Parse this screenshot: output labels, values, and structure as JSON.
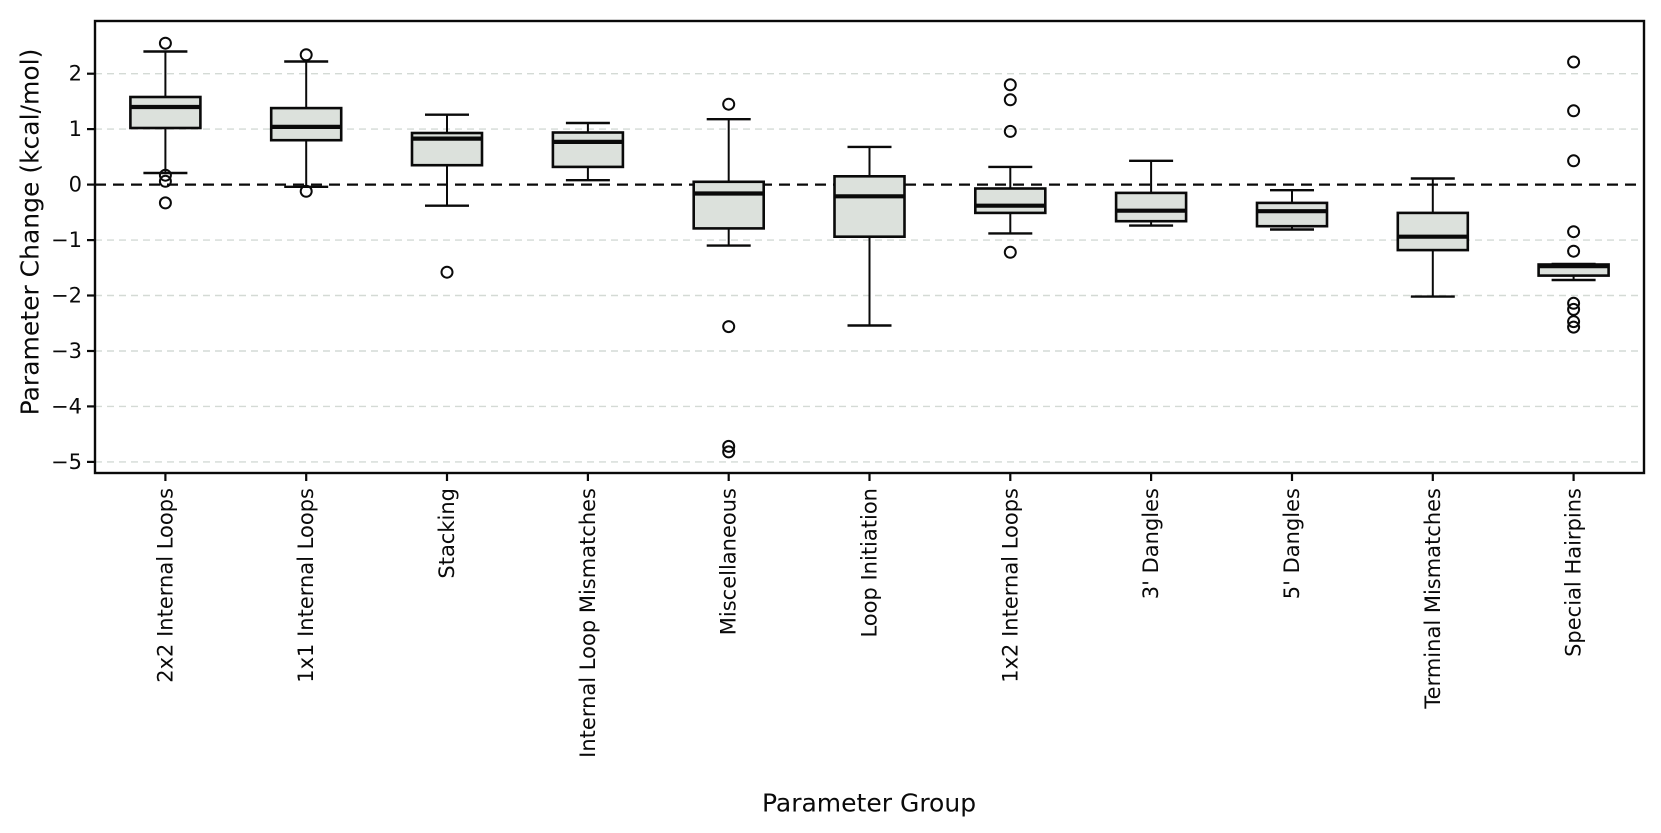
{
  "chart_data": {
    "type": "box",
    "title": "",
    "xlabel": "Parameter Group",
    "ylabel": "Parameter Change (kcal/mol)",
    "ylim": [
      -5.2,
      2.95
    ],
    "yticks": [
      2,
      1,
      0,
      -1,
      -2,
      -3,
      -4,
      -5
    ],
    "grid": "horizontal dashed gridlines at integer values",
    "zero_line": "black dashed line at y=0",
    "legend": "none",
    "categories": [
      "2x2 Internal Loops",
      "1x1 Internal Loops",
      "Stacking",
      "Internal Loop Mismatches",
      "Miscellaneous",
      "Loop Initiation",
      "1x2 Internal Loops",
      "3' Dangles",
      "5' Dangles",
      "Terminal Mismatches",
      "Special Hairpins"
    ],
    "boxes": [
      {
        "label": "2x2 Internal Loops",
        "whislo": 0.21,
        "q1": 1.02,
        "med": 1.4,
        "q3": 1.58,
        "whishi": 2.4,
        "fliers": [
          2.55,
          0.17,
          0.06,
          -0.33
        ]
      },
      {
        "label": "1x1 Internal Loops",
        "whislo": -0.04,
        "q1": 0.8,
        "med": 1.04,
        "q3": 1.38,
        "whishi": 2.22,
        "fliers": [
          2.34,
          -0.12
        ]
      },
      {
        "label": "Stacking",
        "whislo": -0.38,
        "q1": 0.35,
        "med": 0.83,
        "q3": 0.93,
        "whishi": 1.26,
        "fliers": [
          -1.58
        ]
      },
      {
        "label": "Internal Loop Mismatches",
        "whislo": 0.08,
        "q1": 0.32,
        "med": 0.77,
        "q3": 0.94,
        "whishi": 1.11,
        "fliers": []
      },
      {
        "label": "Miscellaneous",
        "whislo": -1.1,
        "q1": -0.79,
        "med": -0.16,
        "q3": 0.05,
        "whishi": 1.18,
        "fliers": [
          1.45,
          -2.56,
          -4.72,
          -4.82
        ]
      },
      {
        "label": "Loop Initiation",
        "whislo": -2.54,
        "q1": -0.94,
        "med": -0.21,
        "q3": 0.15,
        "whishi": 0.68,
        "fliers": []
      },
      {
        "label": "1x2 Internal Loops",
        "whislo": -0.88,
        "q1": -0.51,
        "med": -0.38,
        "q3": -0.07,
        "whishi": 0.32,
        "fliers": [
          1.8,
          1.53,
          0.96,
          -1.22
        ]
      },
      {
        "label": "3' Dangles",
        "whislo": -0.74,
        "q1": -0.66,
        "med": -0.47,
        "q3": -0.15,
        "whishi": 0.43,
        "fliers": []
      },
      {
        "label": "5' Dangles",
        "whislo": -0.81,
        "q1": -0.75,
        "med": -0.48,
        "q3": -0.33,
        "whishi": -0.1,
        "fliers": []
      },
      {
        "label": "Terminal Mismatches",
        "whislo": -2.02,
        "q1": -1.18,
        "med": -0.94,
        "q3": -0.51,
        "whishi": 0.11,
        "fliers": []
      },
      {
        "label": "Special Hairpins",
        "whislo": -1.72,
        "q1": -1.64,
        "med": -1.47,
        "q3": -1.44,
        "whishi": -1.43,
        "fliers": [
          2.21,
          1.33,
          0.43,
          -0.85,
          -1.2,
          -2.14,
          -2.25,
          -2.47,
          -2.57
        ]
      }
    ],
    "colors": {
      "box_fill": "#dce1dc",
      "line": "#0a0a0a",
      "gridline": "#d4dad5",
      "background": "#ffffff"
    }
  }
}
